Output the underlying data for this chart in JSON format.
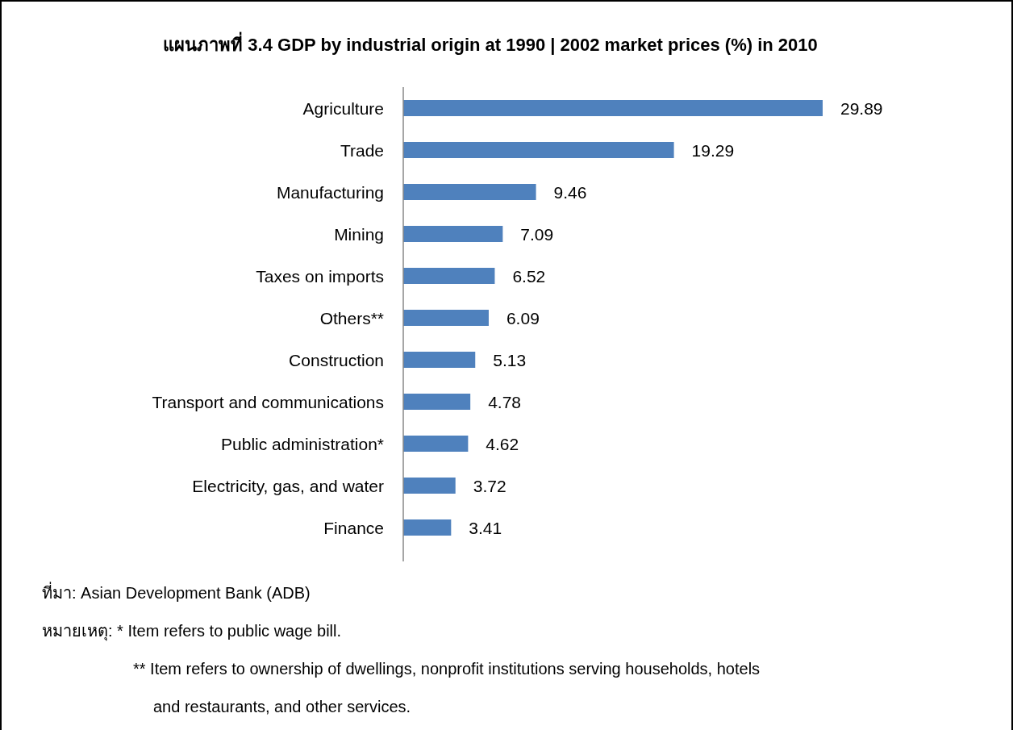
{
  "chart_data": {
    "type": "bar",
    "orientation": "horizontal",
    "title": "แผนภาพที่ 3.4 GDP by industrial origin at 1990 | 2002 market prices (%) in 2010",
    "categories": [
      "Agriculture",
      "Trade",
      "Manufacturing",
      "Mining",
      "Taxes on imports",
      "Others**",
      "Construction",
      "Transport and communications",
      "Public administration*",
      "Electricity, gas, and water",
      "Finance"
    ],
    "values": [
      29.89,
      19.29,
      9.46,
      7.09,
      6.52,
      6.09,
      5.13,
      4.78,
      4.62,
      3.72,
      3.41
    ],
    "color": "#4f81bd",
    "data_labels": true,
    "annotations": [
      "ที่มา: Asian Development Bank (ADB)",
      "หมายเหตุ: * Item refers to public wage bill.",
      "** Item refers to ownership of dwellings, nonprofit institutions serving households, hotels and restaurants, and other services."
    ]
  }
}
